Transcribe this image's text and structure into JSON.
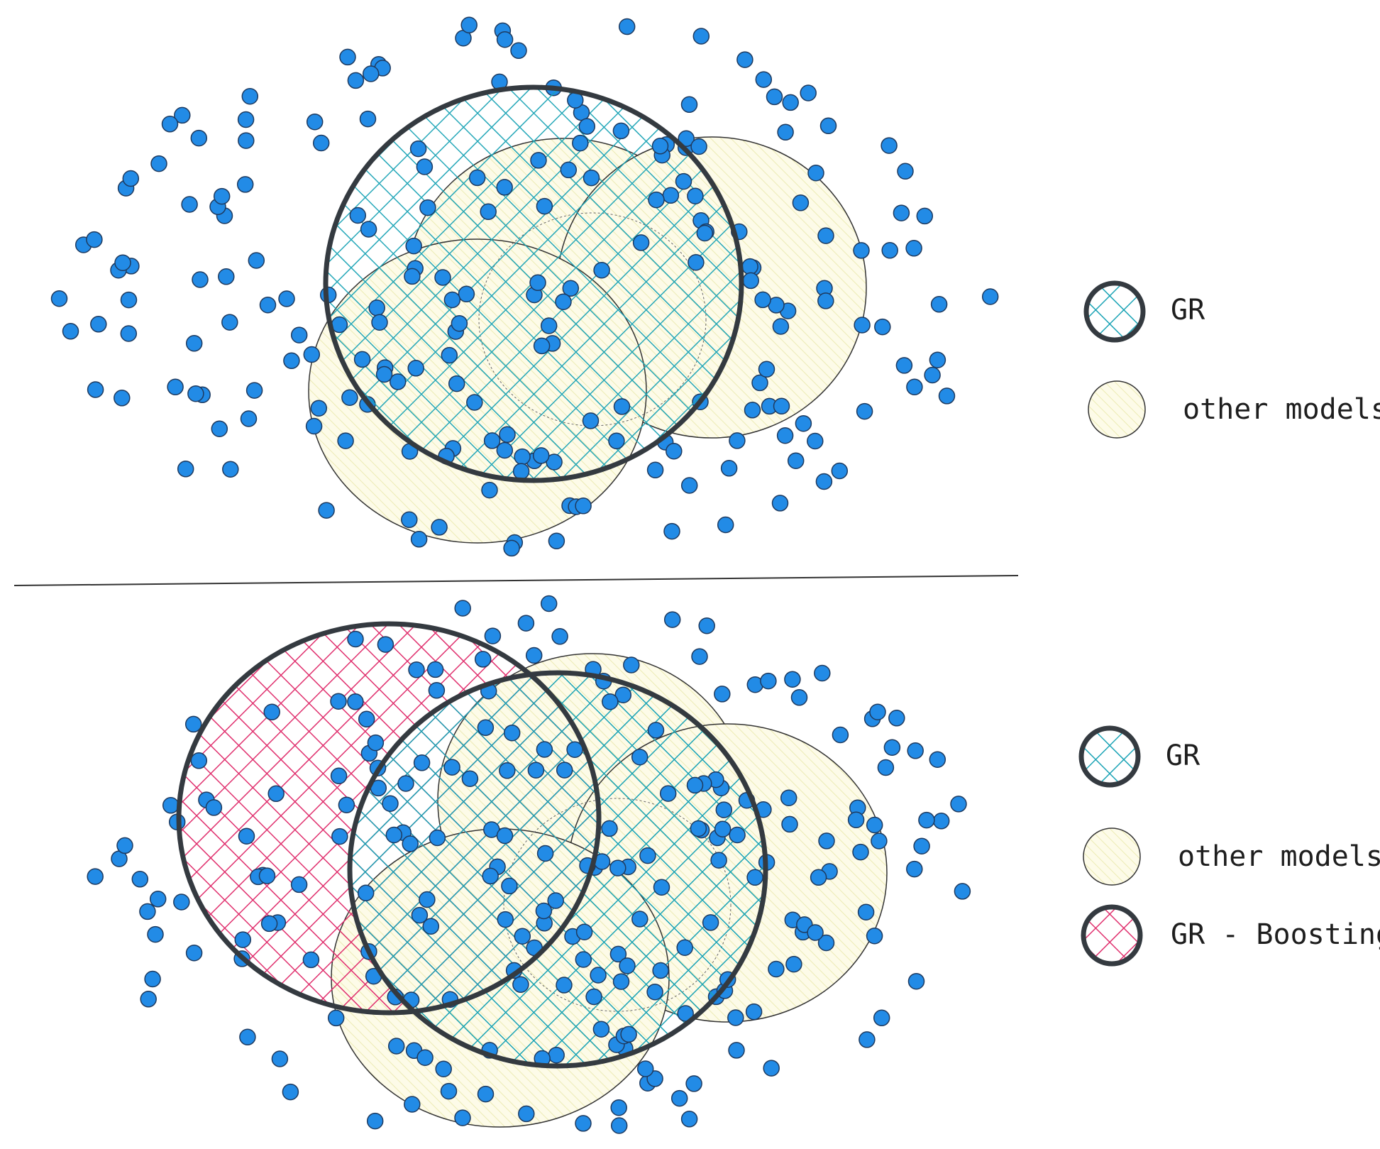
{
  "diagram": {
    "colors": {
      "dot_fill": "#228be6",
      "dot_stroke": "#1e3a5f",
      "gr_hatch": "#1aa3b5",
      "boost_hatch": "#e0306e",
      "other_fill": "#fdfbe8",
      "other_hatch": "#e8e7a0",
      "outline_dark": "#343a40",
      "outline_light": "#555555"
    },
    "top_panel": {
      "legend": [
        {
          "key": "gr",
          "label": "GR"
        },
        {
          "key": "other",
          "label": "other models"
        }
      ]
    },
    "bottom_panel": {
      "legend": [
        {
          "key": "gr",
          "label": "GR"
        },
        {
          "key": "other",
          "label": "other models"
        },
        {
          "key": "boost",
          "label": "GR - Boosting"
        }
      ]
    }
  }
}
